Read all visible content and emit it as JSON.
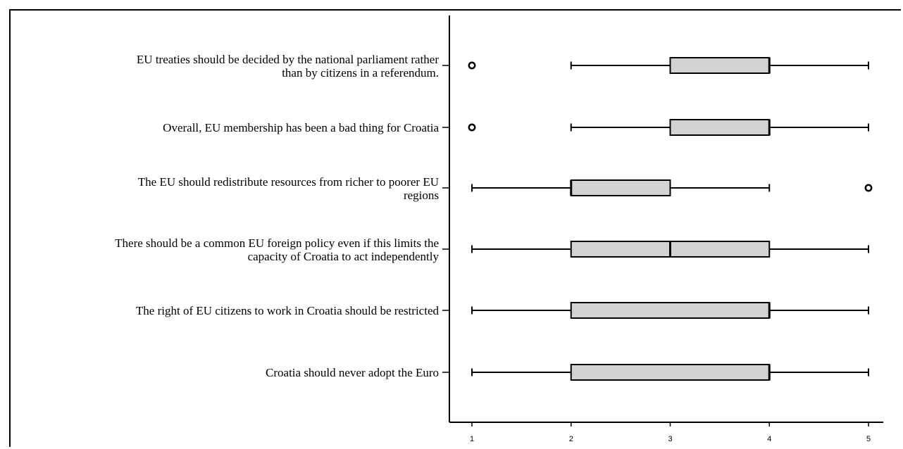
{
  "chart_data": {
    "type": "boxplot",
    "orientation": "horizontal",
    "categories": [
      [
        "EU treaties should be decided by the national parliament rather",
        "than by citizens in a referendum."
      ],
      [
        "Overall, EU membership has been a bad thing for Croatia"
      ],
      [
        "The EU should redistribute resources from richer to poorer EU",
        "regions"
      ],
      [
        "There should be a common EU foreign policy even if this limits the",
        "capacity of Croatia to act independently"
      ],
      [
        "The right of EU citizens to work in Croatia should be restricted"
      ],
      [
        "Croatia should never adopt the Euro"
      ]
    ],
    "boxes": [
      {
        "whisker_low": 2,
        "q1": 3,
        "median": 4,
        "q3": 4,
        "whisker_high": 5,
        "outliers": [
          1
        ]
      },
      {
        "whisker_low": 2,
        "q1": 3,
        "median": 4,
        "q3": 4,
        "whisker_high": 5,
        "outliers": [
          1
        ]
      },
      {
        "whisker_low": 1,
        "q1": 2,
        "median": 2,
        "q3": 3,
        "whisker_high": 4,
        "outliers": [
          5
        ]
      },
      {
        "whisker_low": 1,
        "q1": 2,
        "median": 3,
        "q3": 4,
        "whisker_high": 5,
        "outliers": []
      },
      {
        "whisker_low": 1,
        "q1": 2,
        "median": 4,
        "q3": 4,
        "whisker_high": 5,
        "outliers": []
      },
      {
        "whisker_low": 1,
        "q1": 2,
        "median": 4,
        "q3": 4,
        "whisker_high": 5,
        "outliers": []
      }
    ],
    "x_ticks": [
      "1",
      "2",
      "3",
      "4",
      "5"
    ],
    "xlim": [
      1,
      5
    ],
    "title": "",
    "xlabel": "",
    "ylabel": "",
    "grid": false,
    "colors": {
      "box_fill": "#d3d3d3",
      "stroke": "#000000",
      "background": "#ffffff"
    }
  }
}
